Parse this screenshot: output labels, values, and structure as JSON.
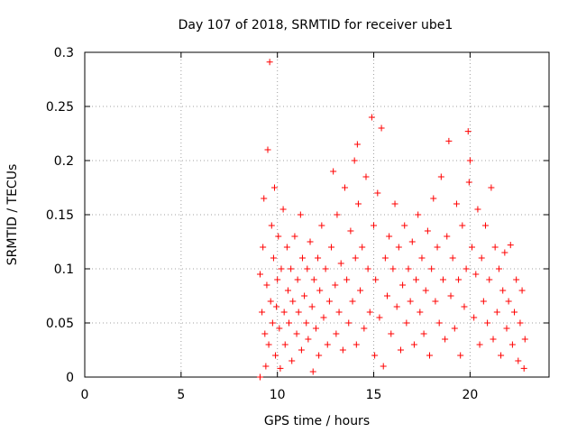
{
  "chart_data": {
    "type": "scatter",
    "title": "Day 107 of 2018, SRMTID for receiver ube1",
    "xlabel": "GPS time / hours",
    "ylabel": "SRMTID / TECUs",
    "xlim": [
      0,
      24.1
    ],
    "ylim": [
      0,
      0.3
    ],
    "xticks": [
      0,
      5,
      10,
      15,
      20
    ],
    "xtick_labels": [
      "0",
      "5",
      "10",
      "15",
      "20"
    ],
    "yticks": [
      0,
      0.05,
      0.1,
      0.15,
      0.2,
      0.25,
      0.3
    ],
    "ytick_labels": [
      "0",
      "0.05",
      "0.1",
      "0.15",
      "0.2",
      "0.25",
      "0.3"
    ],
    "grid": true,
    "marker": "+",
    "color": "#ff0000",
    "series": [
      {
        "name": "SRMTID",
        "points": [
          [
            9.1,
            0.0
          ],
          [
            9.1,
            0.095
          ],
          [
            9.2,
            0.06
          ],
          [
            9.25,
            0.12
          ],
          [
            9.3,
            0.165
          ],
          [
            9.35,
            0.04
          ],
          [
            9.4,
            0.01
          ],
          [
            9.45,
            0.085
          ],
          [
            9.5,
            0.21
          ],
          [
            9.55,
            0.03
          ],
          [
            9.6,
            0.291
          ],
          [
            9.65,
            0.07
          ],
          [
            9.7,
            0.14
          ],
          [
            9.75,
            0.05
          ],
          [
            9.8,
            0.11
          ],
          [
            9.85,
            0.175
          ],
          [
            9.9,
            0.02
          ],
          [
            9.95,
            0.065
          ],
          [
            10.0,
            0.09
          ],
          [
            10.05,
            0.13
          ],
          [
            10.1,
            0.045
          ],
          [
            10.15,
            0.008
          ],
          [
            10.2,
            0.1
          ],
          [
            10.3,
            0.155
          ],
          [
            10.35,
            0.06
          ],
          [
            10.4,
            0.03
          ],
          [
            10.5,
            0.12
          ],
          [
            10.55,
            0.08
          ],
          [
            10.6,
            0.05
          ],
          [
            10.7,
            0.1
          ],
          [
            10.75,
            0.015
          ],
          [
            10.8,
            0.07
          ],
          [
            10.9,
            0.13
          ],
          [
            11.0,
            0.04
          ],
          [
            11.05,
            0.09
          ],
          [
            11.1,
            0.06
          ],
          [
            11.2,
            0.15
          ],
          [
            11.25,
            0.025
          ],
          [
            11.3,
            0.11
          ],
          [
            11.4,
            0.075
          ],
          [
            11.5,
            0.05
          ],
          [
            11.55,
            0.1
          ],
          [
            11.6,
            0.035
          ],
          [
            11.7,
            0.125
          ],
          [
            11.8,
            0.065
          ],
          [
            11.85,
            0.005
          ],
          [
            11.9,
            0.09
          ],
          [
            12.0,
            0.045
          ],
          [
            12.1,
            0.11
          ],
          [
            12.15,
            0.02
          ],
          [
            12.2,
            0.08
          ],
          [
            12.3,
            0.14
          ],
          [
            12.4,
            0.055
          ],
          [
            12.5,
            0.1
          ],
          [
            12.6,
            0.03
          ],
          [
            12.7,
            0.07
          ],
          [
            12.8,
            0.12
          ],
          [
            12.9,
            0.19
          ],
          [
            13.0,
            0.085
          ],
          [
            13.05,
            0.04
          ],
          [
            13.1,
            0.15
          ],
          [
            13.2,
            0.06
          ],
          [
            13.3,
            0.105
          ],
          [
            13.4,
            0.025
          ],
          [
            13.5,
            0.175
          ],
          [
            13.6,
            0.09
          ],
          [
            13.7,
            0.05
          ],
          [
            13.8,
            0.135
          ],
          [
            13.9,
            0.07
          ],
          [
            14.0,
            0.2
          ],
          [
            14.05,
            0.11
          ],
          [
            14.1,
            0.03
          ],
          [
            14.15,
            0.215
          ],
          [
            14.2,
            0.16
          ],
          [
            14.3,
            0.08
          ],
          [
            14.4,
            0.12
          ],
          [
            14.5,
            0.045
          ],
          [
            14.6,
            0.185
          ],
          [
            14.7,
            0.1
          ],
          [
            14.8,
            0.06
          ],
          [
            14.9,
            0.24
          ],
          [
            15.0,
            0.14
          ],
          [
            15.05,
            0.02
          ],
          [
            15.1,
            0.09
          ],
          [
            15.2,
            0.17
          ],
          [
            15.3,
            0.055
          ],
          [
            15.4,
            0.23
          ],
          [
            15.5,
            0.01
          ],
          [
            15.6,
            0.11
          ],
          [
            15.7,
            0.075
          ],
          [
            15.8,
            0.13
          ],
          [
            15.9,
            0.04
          ],
          [
            16.0,
            0.1
          ],
          [
            16.1,
            0.16
          ],
          [
            16.2,
            0.065
          ],
          [
            16.3,
            0.12
          ],
          [
            16.4,
            0.025
          ],
          [
            16.5,
            0.085
          ],
          [
            16.6,
            0.14
          ],
          [
            16.7,
            0.05
          ],
          [
            16.8,
            0.1
          ],
          [
            16.9,
            0.07
          ],
          [
            17.0,
            0.125
          ],
          [
            17.1,
            0.03
          ],
          [
            17.2,
            0.09
          ],
          [
            17.3,
            0.15
          ],
          [
            17.4,
            0.06
          ],
          [
            17.5,
            0.11
          ],
          [
            17.6,
            0.04
          ],
          [
            17.7,
            0.08
          ],
          [
            17.8,
            0.135
          ],
          [
            17.9,
            0.02
          ],
          [
            18.0,
            0.1
          ],
          [
            18.1,
            0.165
          ],
          [
            18.2,
            0.07
          ],
          [
            18.3,
            0.12
          ],
          [
            18.4,
            0.05
          ],
          [
            18.5,
            0.185
          ],
          [
            18.6,
            0.09
          ],
          [
            18.7,
            0.035
          ],
          [
            18.8,
            0.13
          ],
          [
            18.9,
            0.218
          ],
          [
            19.0,
            0.075
          ],
          [
            19.1,
            0.11
          ],
          [
            19.2,
            0.045
          ],
          [
            19.3,
            0.16
          ],
          [
            19.4,
            0.09
          ],
          [
            19.5,
            0.02
          ],
          [
            19.6,
            0.14
          ],
          [
            19.7,
            0.065
          ],
          [
            19.8,
            0.1
          ],
          [
            19.9,
            0.227
          ],
          [
            19.95,
            0.18
          ],
          [
            20.0,
            0.2
          ],
          [
            20.1,
            0.12
          ],
          [
            20.2,
            0.055
          ],
          [
            20.3,
            0.095
          ],
          [
            20.4,
            0.155
          ],
          [
            20.5,
            0.03
          ],
          [
            20.6,
            0.11
          ],
          [
            20.7,
            0.07
          ],
          [
            20.8,
            0.14
          ],
          [
            20.9,
            0.05
          ],
          [
            21.0,
            0.09
          ],
          [
            21.1,
            0.175
          ],
          [
            21.2,
            0.035
          ],
          [
            21.3,
            0.12
          ],
          [
            21.4,
            0.06
          ],
          [
            21.5,
            0.1
          ],
          [
            21.6,
            0.02
          ],
          [
            21.7,
            0.08
          ],
          [
            21.8,
            0.115
          ],
          [
            21.9,
            0.045
          ],
          [
            22.0,
            0.07
          ],
          [
            22.1,
            0.122
          ],
          [
            22.2,
            0.03
          ],
          [
            22.3,
            0.06
          ],
          [
            22.4,
            0.09
          ],
          [
            22.5,
            0.015
          ],
          [
            22.6,
            0.05
          ],
          [
            22.7,
            0.08
          ],
          [
            22.8,
            0.008
          ],
          [
            22.85,
            0.035
          ]
        ]
      }
    ]
  }
}
